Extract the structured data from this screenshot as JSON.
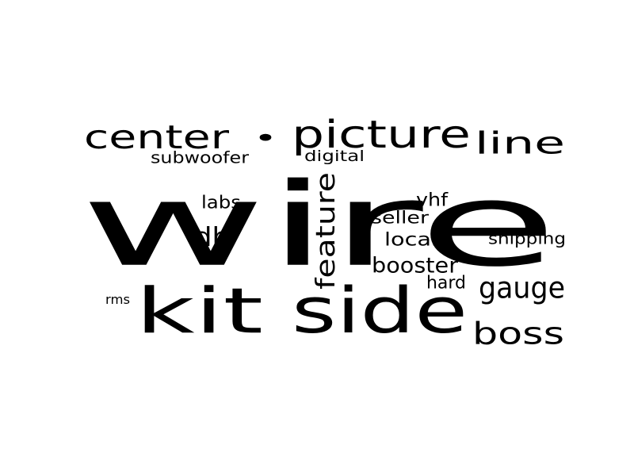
{
  "word_cloud": {
    "text_color": "#000000",
    "background_color": "#ffffff",
    "words": [
      {
        "text": "wire",
        "orientation": "horizontal"
      },
      {
        "text": "kit",
        "orientation": "horizontal"
      },
      {
        "text": "side",
        "orientation": "horizontal"
      },
      {
        "text": "center",
        "orientation": "horizontal"
      },
      {
        "text": "•",
        "orientation": "horizontal"
      },
      {
        "text": "picture",
        "orientation": "horizontal"
      },
      {
        "text": "line",
        "orientation": "horizontal"
      },
      {
        "text": "boss",
        "orientation": "horizontal"
      },
      {
        "text": "gauge",
        "orientation": "horizontal"
      },
      {
        "text": "feature",
        "orientation": "vertical"
      },
      {
        "text": "db",
        "orientation": "horizontal"
      },
      {
        "text": "booster",
        "orientation": "horizontal"
      },
      {
        "text": "local",
        "orientation": "horizontal"
      },
      {
        "text": "subwoofer",
        "orientation": "horizontal"
      },
      {
        "text": "labs",
        "orientation": "horizontal"
      },
      {
        "text": "vhf",
        "orientation": "horizontal"
      },
      {
        "text": "seller",
        "orientation": "horizontal"
      },
      {
        "text": "shipping",
        "orientation": "horizontal"
      },
      {
        "text": "hard",
        "orientation": "horizontal"
      },
      {
        "text": "digital",
        "orientation": "horizontal"
      },
      {
        "text": "rms",
        "orientation": "horizontal"
      }
    ]
  }
}
